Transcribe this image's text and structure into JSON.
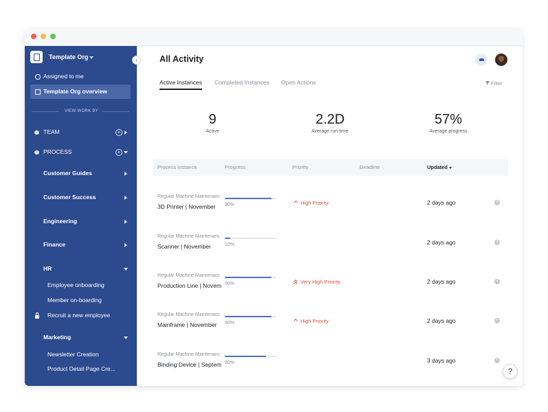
{
  "sidebar": {
    "org": "Template Org",
    "nav": [
      "Assigned to me",
      "Template Org overview"
    ],
    "section_label": "VIEW WORK BY",
    "groups": [
      "TEAM",
      "PROCESS"
    ],
    "items": [
      {
        "label": "Customer Guides",
        "level": 1,
        "state": "collapsed"
      },
      {
        "label": "Customer Success",
        "level": 1,
        "state": "collapsed"
      },
      {
        "label": "Engineering",
        "level": 1,
        "state": "collapsed"
      },
      {
        "label": "Finance",
        "level": 1,
        "state": "collapsed"
      },
      {
        "label": "HR",
        "level": 1,
        "state": "expanded"
      },
      {
        "label": "Employee onboarding",
        "level": 2
      },
      {
        "label": "Member on-boarding",
        "level": 2
      },
      {
        "label": "Recruit a new employee",
        "level": 2,
        "locked": true
      },
      {
        "label": "Marketing",
        "level": 1,
        "state": "expanded"
      },
      {
        "label": "Newsletter Creation",
        "level": 2
      },
      {
        "label": "Product Detail Page Cre...",
        "level": 2
      }
    ]
  },
  "main": {
    "title": "All Activity",
    "tabs": [
      "Active Instances",
      "Completed Instances",
      "Open Actions"
    ],
    "active_tab": 0,
    "filter": "Filter",
    "stats": [
      {
        "value": "9",
        "label": "Active"
      },
      {
        "value": "2.2D",
        "label": "Average run-time"
      },
      {
        "value": "57%",
        "label": "Average progress"
      }
    ],
    "table": {
      "headers": [
        "Process Instance",
        "Progress",
        "Priority",
        "Deadline",
        "Updated"
      ],
      "rows": [
        {
          "process": "Regular Machine Maintenanc",
          "name": "3D Printer | November",
          "progress": "90%",
          "priority": "High Priority",
          "updated": "2 days ago"
        },
        {
          "process": "Regular Machine Maintenanc",
          "name": "Scanner | November",
          "progress": "10%",
          "updated": "2 days ago"
        },
        {
          "process": "Regular Machine Maintenanc",
          "name": "Production Line | Novem",
          "progress": "90%",
          "priority": "Very High Priority",
          "updated": "2 days ago"
        },
        {
          "process": "Regular Machine Maintenanc",
          "name": "Mainframe | November",
          "progress": "90%",
          "priority": "High Priority",
          "updated": "2 days ago"
        },
        {
          "process": "Regular Machine Maintenanc",
          "name": "Binding Device | Septeml",
          "progress": "80%",
          "updated": "3 days ago"
        }
      ]
    },
    "help": "?"
  }
}
